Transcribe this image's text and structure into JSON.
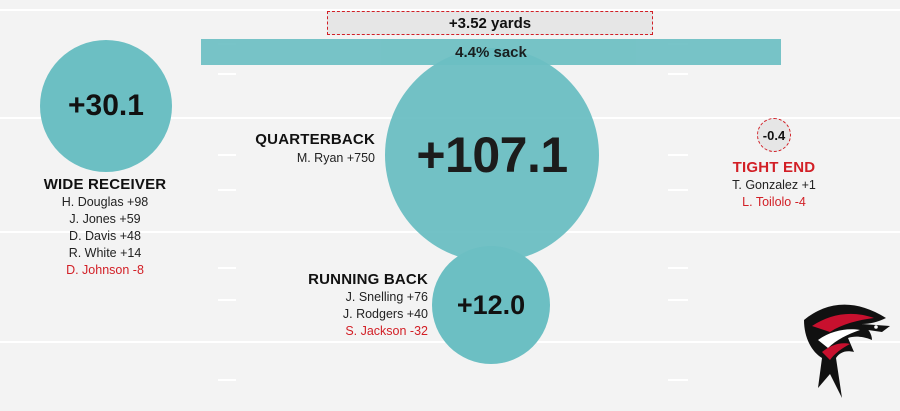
{
  "colors": {
    "circle": "#6cbfc3",
    "negative": "#d21f26",
    "field_line": "#ffffff",
    "neg_dashed_fill": "#e6e6e6"
  },
  "pass": {
    "yards_label": "+3.52 yards",
    "sack_label": "4.4% sack"
  },
  "quarterback": {
    "title": "QUARTERBACK",
    "value": "+107.1",
    "players": [
      {
        "text": "M. Ryan +750",
        "negative": false
      }
    ]
  },
  "wide_receiver": {
    "title": "WIDE RECEIVER",
    "value": "+30.1",
    "players": [
      {
        "text": "H. Douglas +98",
        "negative": false
      },
      {
        "text": "J. Jones +59",
        "negative": false
      },
      {
        "text": "D. Davis +48",
        "negative": false
      },
      {
        "text": "R. White +14",
        "negative": false
      },
      {
        "text": "D. Johnson -8",
        "negative": true
      }
    ]
  },
  "running_back": {
    "title": "RUNNING BACK",
    "value": "+12.0",
    "players": [
      {
        "text": "J. Snelling +76",
        "negative": false
      },
      {
        "text": "J. Rodgers +40",
        "negative": false
      },
      {
        "text": "S. Jackson -32",
        "negative": true
      }
    ]
  },
  "tight_end": {
    "title": "TIGHT END",
    "value": "-0.4",
    "players": [
      {
        "text": "T. Gonzalez +1",
        "negative": false
      },
      {
        "text": "L. Toilolo -4",
        "negative": true
      }
    ]
  },
  "logo": {
    "icon": "falcon-logo-icon"
  }
}
